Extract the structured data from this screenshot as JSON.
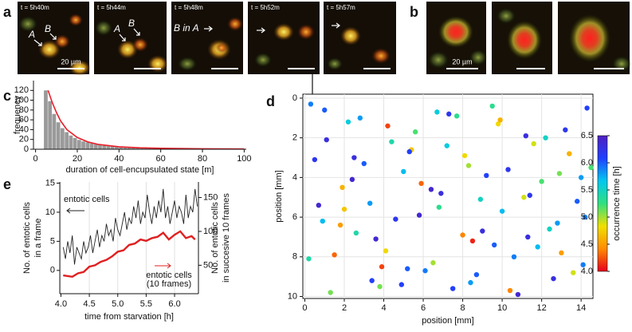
{
  "panel_labels": {
    "a": "a",
    "b": "b",
    "c": "c",
    "d": "d",
    "e": "e"
  },
  "micrographs": {
    "a": {
      "timestamps": [
        "t = 5h40m",
        "t = 5h44m",
        "t = 5h48m",
        "t = 5h52m",
        "t = 5h57m"
      ],
      "labels": [
        "A",
        "B",
        "A",
        "B",
        "B in A"
      ],
      "scale_bar": "20 µm"
    },
    "b": {
      "scale_bar": "20 µm"
    }
  },
  "chart_data": [
    {
      "type": "histogram",
      "ylabel": "frequency",
      "xlabel": "duration of cell-encupsulated state [m]",
      "bins": [
        4,
        6,
        8,
        10,
        12,
        14,
        16,
        18,
        20,
        22,
        24,
        26,
        28,
        30,
        32,
        34,
        36,
        38,
        40,
        42,
        44,
        46,
        48,
        50,
        52,
        54,
        56,
        58,
        60,
        62,
        64,
        66,
        68,
        70,
        72,
        74,
        76,
        78,
        80,
        82,
        84,
        86,
        88,
        90,
        92,
        94,
        96,
        98,
        100
      ],
      "values": [
        120,
        98,
        72,
        55,
        43,
        35,
        28,
        23,
        19,
        16,
        14,
        12,
        10,
        9,
        8,
        7,
        6,
        6,
        5,
        5,
        4,
        4,
        4,
        3,
        3,
        3,
        3,
        2,
        2,
        2,
        2,
        2,
        2,
        1,
        1,
        1,
        1,
        1,
        1,
        1,
        1,
        0,
        1,
        0,
        1,
        0,
        0,
        1
      ],
      "color": "#9a9a9a",
      "fit": {
        "x": [
          6,
          8,
          10,
          12,
          15,
          20,
          25,
          30,
          40,
          50,
          60,
          80,
          100
        ],
        "values": [
          120,
          95,
          75,
          58,
          40,
          24,
          15,
          10,
          5,
          3,
          2,
          1,
          0.5
        ],
        "color": "#e8202a"
      },
      "xlim": [
        -1,
        101
      ],
      "ylim": [
        0,
        140
      ],
      "xticks": [
        0,
        20,
        40,
        60,
        80,
        100
      ],
      "yticks": [
        0,
        20,
        40,
        60,
        80,
        100,
        120
      ]
    },
    {
      "type": "scatter",
      "xlabel": "position [mm]",
      "ylabel": "position [mm]",
      "x": [
        0.3,
        1.1,
        1.9,
        2.6,
        3.4,
        4.2,
        5.0,
        5.8,
        6.5,
        7.3,
        8.1,
        8.9,
        9.6,
        10.4,
        11.2,
        12.0,
        12.8,
        13.6,
        14.3,
        0.7,
        1.5,
        2.2,
        3.0,
        3.8,
        4.6,
        5.4,
        6.1,
        6.9,
        7.7,
        8.5,
        9.2,
        10.0,
        10.8,
        11.6,
        12.4,
        13.2,
        14.0,
        0.2,
        1.0,
        1.8,
        2.5,
        3.3,
        4.1,
        4.9,
        5.6,
        6.4,
        7.2,
        8.0,
        8.7,
        9.5,
        10.3,
        11.1,
        11.8,
        12.6,
        13.4,
        14.2,
        0.5,
        1.3,
        2.0,
        2.8,
        3.6,
        4.4,
        5.2,
        5.9,
        6.7,
        7.5,
        8.3,
        9.0,
        9.8,
        10.6,
        11.4,
        12.2,
        13.0,
        13.8,
        14.5,
        0.9,
        2.4,
        3.9,
        5.3,
        6.8,
        8.4,
        9.9,
        11.3,
        12.9,
        14.1
      ],
      "values": [
        0.3,
        2.1,
        4.5,
        6.8,
        9.2,
        1.4,
        3.7,
        5.9,
        8.3,
        0.8,
        2.9,
        5.1,
        7.4,
        9.7,
        1.9,
        4.2,
        6.3,
        8.8,
        0.5,
        5.4,
        7.9,
        1.2,
        3.3,
        9.5,
        6.1,
        2.6,
        8.7,
        4.8,
        0.9,
        7.2,
        3.9,
        5.7,
        9.9,
        2.3,
        6.6,
        1.6,
        4.0,
        8.1,
        0.6,
        6.4,
        3.0,
        5.3,
        7.7,
        9.4,
        1.7,
        4.6,
        2.4,
        6.9,
        8.9,
        0.4,
        3.6,
        5.0,
        7.5,
        9.1,
        2.8,
        6.0,
        3.1,
        9.8,
        5.6,
        1.0,
        7.1,
        2.2,
        8.6,
        4.3,
        0.7,
        9.6,
        3.4,
        6.7,
        1.3,
        8.0,
        4.9,
        2.0,
        7.8,
        5.2,
        3.5,
        6.2,
        4.1,
        8.5,
        2.7,
        5.5,
        9.3,
        1.1,
        7.0,
        3.8,
        8.4
      ],
      "time": [
        5.9,
        6.3,
        4.6,
        5.4,
        6.1,
        4.2,
        5.7,
        6.4,
        5.0,
        6.2,
        4.8,
        5.5,
        6.0,
        4.4,
        6.3,
        5.2,
        5.8,
        4.9,
        6.1,
        6.4,
        4.3,
        5.6,
        6.0,
        5.1,
        6.2,
        4.7,
        5.9,
        6.3,
        5.3,
        4.1,
        6.1,
        5.7,
        6.4,
        4.9,
        5.5,
        6.2,
        5.8,
        5.4,
        6.0,
        4.5,
        6.3,
        5.8,
        4.8,
        6.1,
        5.2,
        6.4,
        5.6,
        4.4,
        6.0,
        5.3,
        6.2,
        4.9,
        5.7,
        6.3,
        4.6,
        5.9,
        6.2,
        5.1,
        4.7,
        5.8,
        6.4,
        5.4,
        6.0,
        4.3,
        5.6,
        6.1,
        5.0,
        6.3,
        4.8,
        5.9,
        6.2,
        5.5,
        4.5,
        6.0,
        5.2,
        5.7,
        6.4,
        4.2,
        6.1,
        5.3,
        5.8,
        4.6,
        6.3,
        5.1,
        5.9
      ],
      "xlim": [
        -0.1,
        14.6
      ],
      "ylim": [
        10.1,
        -0.2
      ],
      "xticks": [
        0,
        2,
        4,
        6,
        8,
        10,
        12,
        14
      ],
      "yticks": [
        0,
        2,
        4,
        6,
        8,
        10
      ],
      "grid": true,
      "colorbar": {
        "label": "occurrence time [h]",
        "clim": [
          4,
          6.5
        ],
        "colormap": [
          "#e8001c",
          "#ff8c00",
          "#f0e000",
          "#30e080",
          "#00c8f0",
          "#2040ff",
          "#5020c0"
        ],
        "ticks": [
          {
            "value": 4,
            "label": "4.0"
          },
          {
            "value": 4.5,
            "label": "4.5"
          },
          {
            "value": 5,
            "label": "5.0"
          },
          {
            "value": 5.5,
            "label": "5.5"
          },
          {
            "value": 6,
            "label": "6.0"
          },
          {
            "value": 6.5,
            "label": "6.5"
          }
        ]
      }
    },
    {
      "type": "line",
      "xlabel": "time from starvation [h]",
      "ylabel": [
        "No. of entotic cells",
        "in a frame"
      ],
      "y2label": [
        "No. of entotic cells",
        "in succesive 10 frames"
      ],
      "series": [
        {
          "color": "#222222",
          "x": [
            4.04,
            4.08,
            4.12,
            4.16,
            4.2,
            4.24,
            4.28,
            4.32,
            4.36,
            4.4,
            4.44,
            4.48,
            4.52,
            4.56,
            4.6,
            4.64,
            4.68,
            4.72,
            4.76,
            4.8,
            4.84,
            4.88,
            4.92,
            4.96,
            5.0,
            5.04,
            5.08,
            5.12,
            5.16,
            5.2,
            5.24,
            5.28,
            5.32,
            5.36,
            5.4,
            5.44,
            5.48,
            5.52,
            5.56,
            5.6,
            5.64,
            5.68,
            5.72,
            5.76,
            5.8,
            5.84,
            5.88,
            5.92,
            5.96,
            6.0,
            6.04,
            6.08,
            6.12,
            6.16,
            6.2,
            6.24,
            6.28,
            6.32,
            6.36,
            6.4
          ],
          "values": [
            4,
            2,
            5,
            3,
            6,
            1,
            4,
            3,
            2,
            5,
            3,
            4,
            6,
            3,
            5,
            7,
            4,
            6,
            5,
            8,
            6,
            7,
            5,
            9,
            7,
            6,
            8,
            10,
            7,
            9,
            8,
            11,
            9,
            12,
            8,
            10,
            9,
            13,
            10,
            8,
            11,
            9,
            12,
            10,
            14,
            9,
            11,
            8,
            10,
            12,
            9,
            11,
            10,
            8,
            13,
            9,
            11,
            10,
            14,
            11
          ]
        },
        {
          "color": "#e02020",
          "axis": "y2",
          "x": [
            4.04,
            4.2,
            4.3,
            4.4,
            4.5,
            4.6,
            4.7,
            4.8,
            4.9,
            5.0,
            5.1,
            5.2,
            5.3,
            5.4,
            5.5,
            5.6,
            5.7,
            5.8,
            5.9,
            6.0,
            6.1,
            6.2,
            6.3,
            6.36
          ],
          "values": [
            35,
            33,
            38,
            40,
            48,
            50,
            55,
            58,
            63,
            70,
            72,
            80,
            82,
            88,
            86,
            90,
            92,
            98,
            88,
            95,
            100,
            90,
            93,
            88
          ]
        }
      ],
      "annotations": [
        {
          "text": [
            "entotic cells"
          ],
          "color": "#222222"
        },
        {
          "text": [
            "entotic cells",
            "(10 frames)"
          ],
          "color": "#e02020"
        }
      ],
      "xlim": [
        3.98,
        6.42
      ],
      "ylim": [
        -4,
        15.2
      ],
      "y2lim": [
        8,
        173
      ],
      "xticks": [
        {
          "value": 4,
          "label": "4.0"
        },
        {
          "value": 4.5,
          "label": "4.5"
        },
        {
          "value": 5,
          "label": "5.0"
        },
        {
          "value": 5.5,
          "label": "5.5"
        },
        {
          "value": 6,
          "label": "6.0"
        }
      ],
      "yticks": [
        0,
        5,
        10,
        15
      ],
      "y2ticks": [
        50,
        100,
        150
      ],
      "grid": true
    }
  ]
}
